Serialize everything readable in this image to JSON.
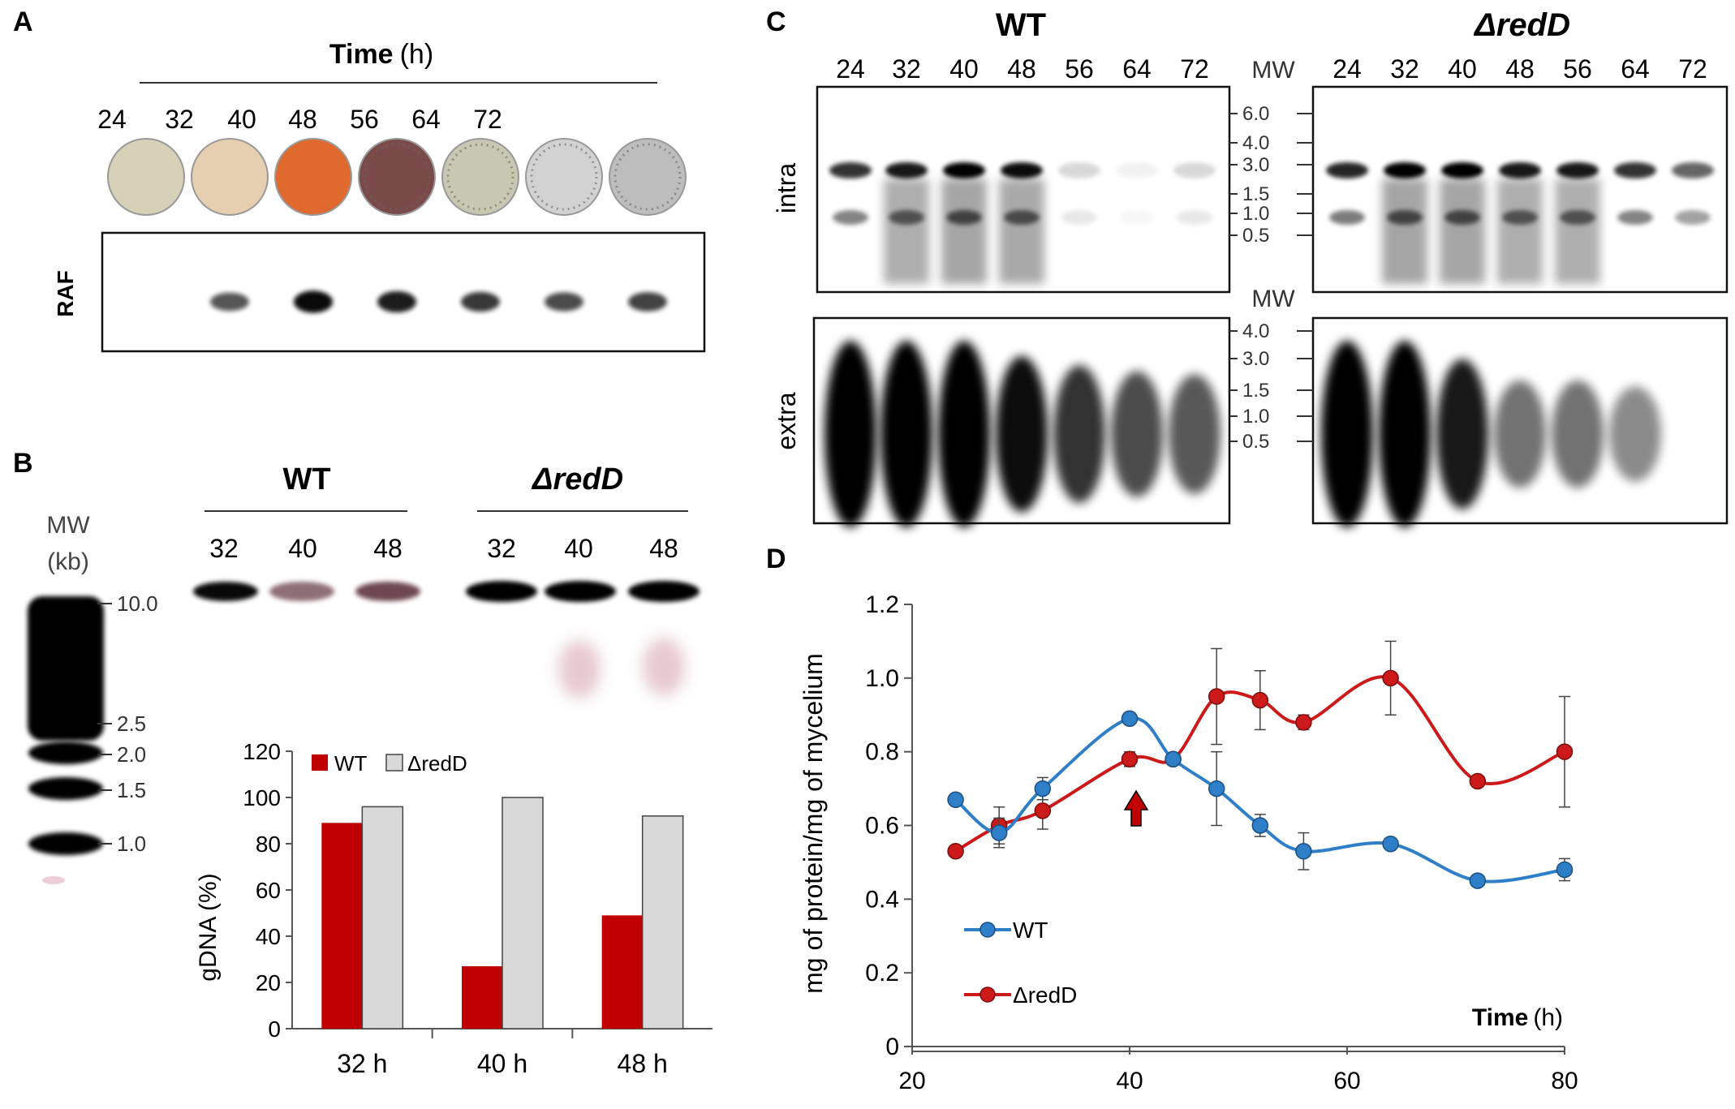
{
  "colors": {
    "wt": "#c00000",
    "redd": "#d9d9d9",
    "wt_line": "#2f7fc8",
    "redd_line": "#cc1a1a",
    "arrow": "#c00000",
    "plates": [
      "#d7d1b8",
      "#e6cfb0",
      "#e06a2e",
      "#7a4a48",
      "#c8c7b2",
      "#d2d2d2",
      "#bdbdbd"
    ]
  },
  "panel_a": {
    "label": "A",
    "time_word": "Time",
    "time_unit": "(h)",
    "timepoints": [
      "24",
      "32",
      "40",
      "48",
      "56",
      "64",
      "72"
    ],
    "gel_label": "RAF",
    "band_intensity": [
      0.0,
      0.55,
      0.95,
      0.85,
      0.7,
      0.6,
      0.65
    ]
  },
  "panel_b": {
    "label": "B",
    "mw_title": "MW",
    "mw_unit": "(kb)",
    "mw_markers": [
      "10.0",
      "2.5",
      "2.0",
      "1.5",
      "1.0"
    ],
    "group_wt": "WT",
    "group_redd": "ΔredD",
    "lanes_wt": [
      "32",
      "40",
      "48"
    ],
    "lanes_redd": [
      "32",
      "40",
      "48"
    ]
  },
  "panel_c": {
    "label": "C",
    "title_wt": "WT",
    "title_redd": "ΔredD",
    "mw_label_top": "MW",
    "mw_label_bottom": "MW",
    "lanes_wt": [
      "24",
      "32",
      "40",
      "48",
      "56",
      "64",
      "72"
    ],
    "lanes_redd": [
      "24",
      "32",
      "40",
      "48",
      "56",
      "64",
      "72"
    ],
    "row_intra": "intra",
    "row_extra": "extra",
    "mw_intra": [
      "6.0",
      "4.0",
      "3.0",
      "1.5",
      "1.0",
      "0.5"
    ],
    "mw_extra": [
      "4.0",
      "3.0",
      "1.5",
      "1.0",
      "0.5"
    ],
    "intra_wt": [
      0.8,
      0.9,
      1.0,
      0.95,
      0.15,
      0.05,
      0.15
    ],
    "intra_redd": [
      0.85,
      1.0,
      1.0,
      0.9,
      0.9,
      0.8,
      0.6
    ],
    "extra_wt": [
      1.0,
      1.0,
      1.0,
      0.75,
      0.6,
      0.5,
      0.45
    ],
    "extra_redd": [
      1.0,
      1.0,
      0.7,
      0.35,
      0.35,
      0.25,
      0.0
    ]
  },
  "panel_d": {
    "label": "D"
  },
  "chart_data": [
    {
      "type": "bar",
      "title": "",
      "xlabel": "",
      "ylabel": "gDNA (%)",
      "categories": [
        "32 h",
        "40 h",
        "48 h"
      ],
      "series": [
        {
          "name": "WT",
          "values": [
            89,
            27,
            49
          ]
        },
        {
          "name": "ΔredD",
          "values": [
            96,
            100,
            92
          ]
        }
      ],
      "ylim": [
        0,
        120
      ],
      "yticks": [
        "0",
        "20",
        "40",
        "60",
        "80",
        "100",
        "120"
      ],
      "legend": "top"
    },
    {
      "type": "line",
      "title": "",
      "xlabel_word": "Time",
      "xlabel_unit": "(h)",
      "ylabel": "mg of protein/mg of mycelium",
      "xlim": [
        20,
        80
      ],
      "ylim": [
        0,
        1.2
      ],
      "xticks": [
        "20",
        "40",
        "60",
        "80"
      ],
      "yticks": [
        "0",
        "0.2",
        "0.4",
        "0.6",
        "0.8",
        "1.0",
        "1.2"
      ],
      "series": [
        {
          "name": "WT",
          "x": [
            24,
            28,
            32,
            40,
            44,
            48,
            52,
            56,
            64,
            72,
            80
          ],
          "y": [
            0.67,
            0.58,
            0.7,
            0.89,
            0.78,
            0.7,
            0.6,
            0.53,
            0.55,
            0.45,
            0.48
          ],
          "err": [
            0,
            0.04,
            0.03,
            0,
            0,
            0.1,
            0.03,
            0.05,
            0,
            0,
            0.03
          ]
        },
        {
          "name": "ΔredD",
          "x": [
            24,
            28,
            32,
            40,
            44,
            48,
            52,
            56,
            64,
            72,
            80
          ],
          "y": [
            0.53,
            0.6,
            0.64,
            0.78,
            0.78,
            0.95,
            0.94,
            0.88,
            1.0,
            0.72,
            0.8
          ],
          "err": [
            0,
            0.05,
            0.05,
            0.02,
            0,
            0.13,
            0.08,
            0.02,
            0.1,
            0,
            0.15
          ]
        }
      ],
      "annotation": "arrow at 40 h",
      "legend": "bottom-left"
    }
  ]
}
